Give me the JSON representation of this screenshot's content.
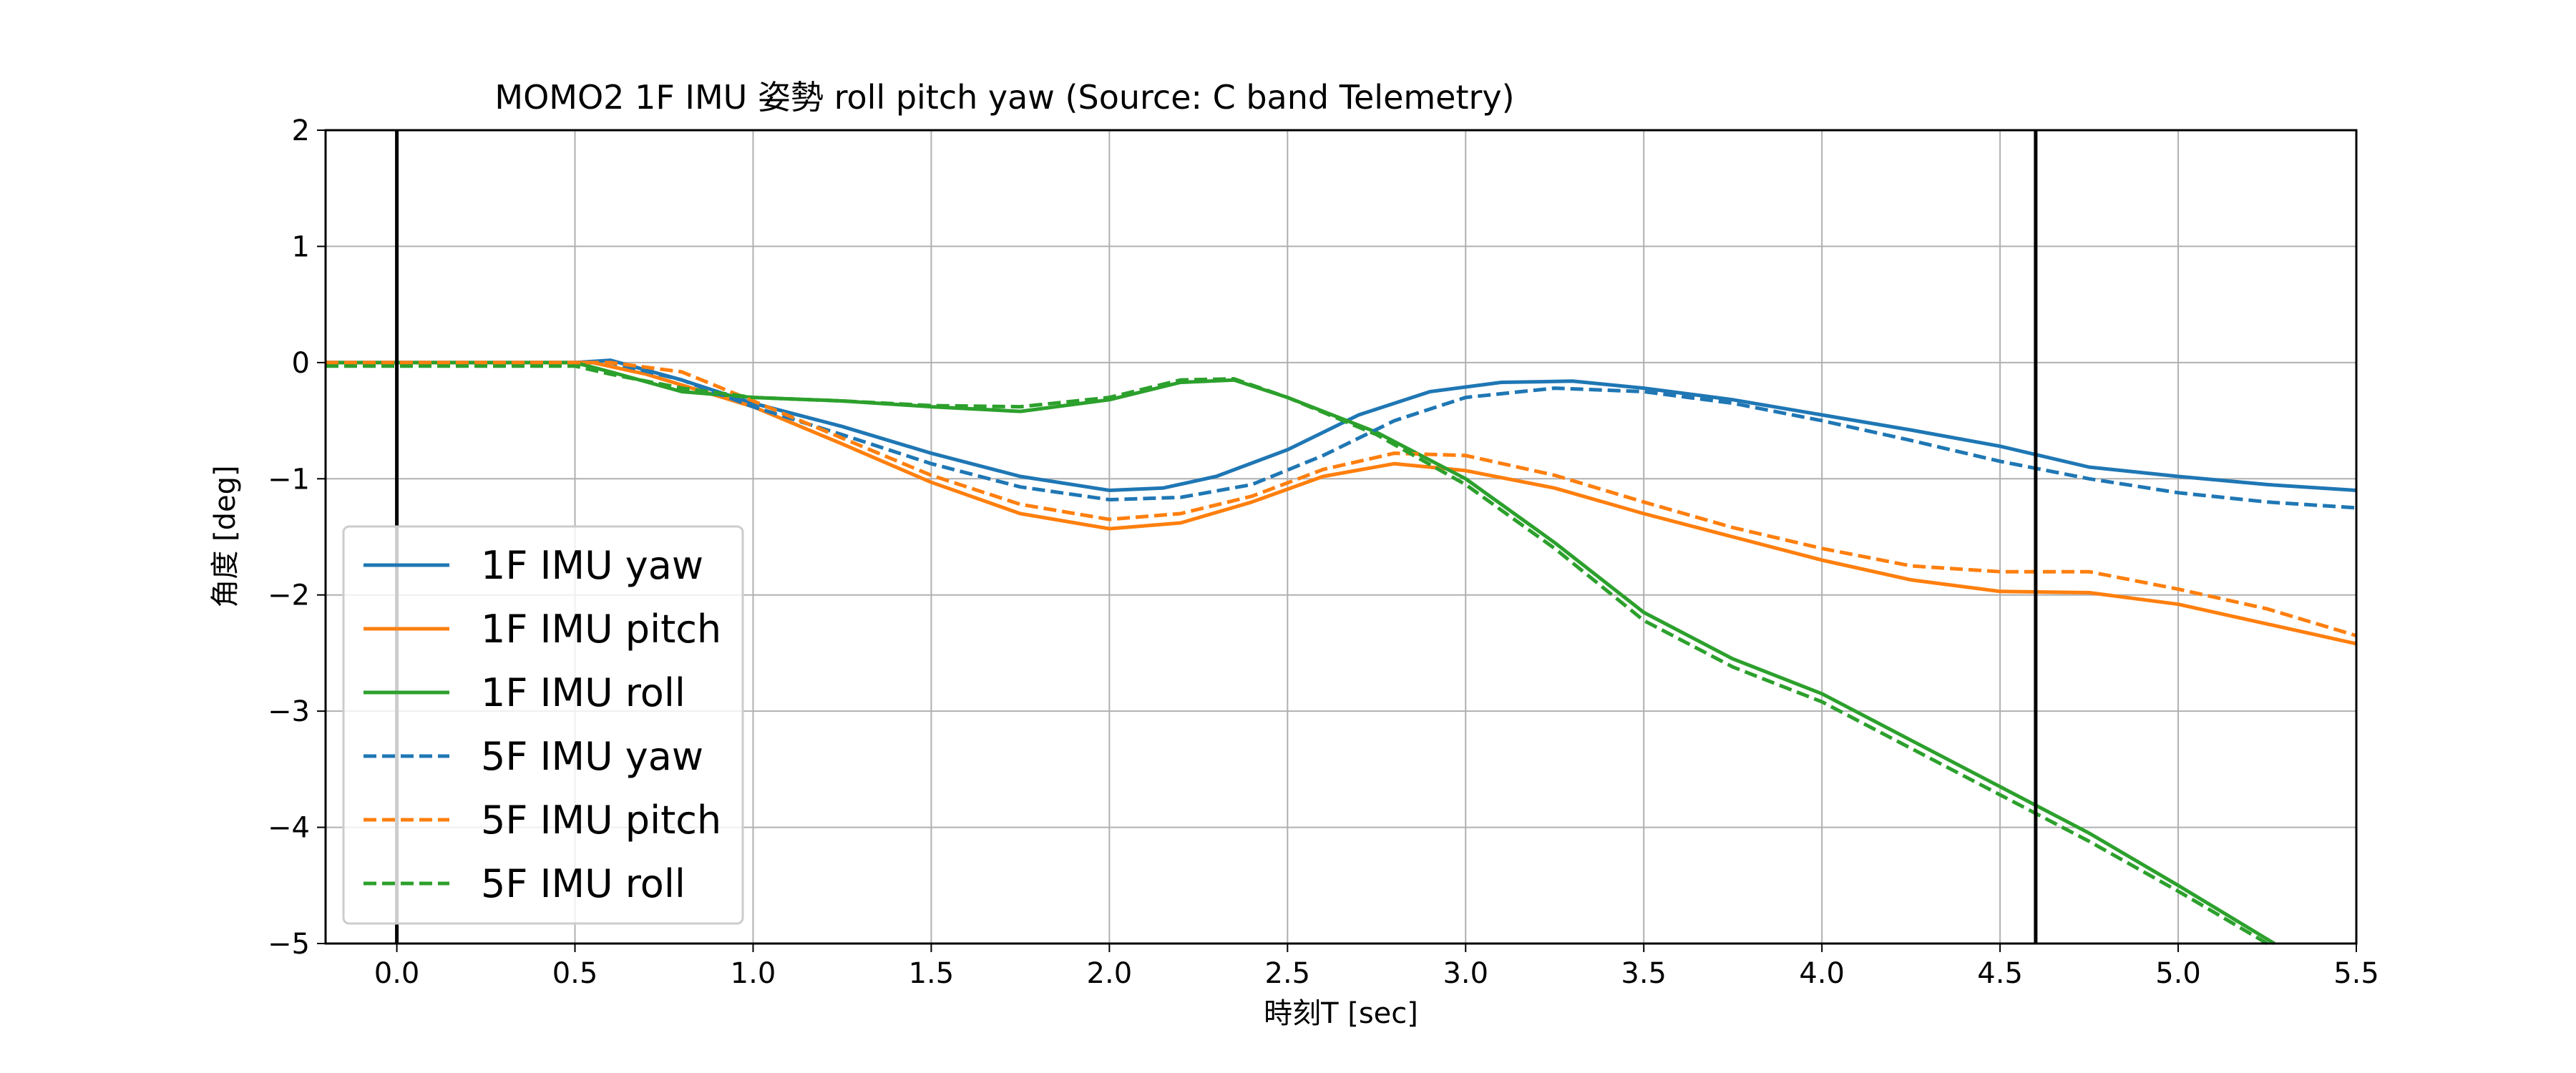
{
  "chart_data": {
    "type": "line",
    "title": "MOMO2 1F IMU 姿勢 roll pitch yaw (Source: C band Telemetry)",
    "xlabel": "時刻T [sec]",
    "ylabel": "角度 [deg]",
    "xlim": [
      -0.2,
      5.5
    ],
    "ylim": [
      -5,
      2
    ],
    "xticks": [
      0.0,
      0.5,
      1.0,
      1.5,
      2.0,
      2.5,
      3.0,
      3.5,
      4.0,
      4.5,
      5.0,
      5.5
    ],
    "xtick_labels": [
      "0.0",
      "0.5",
      "1.0",
      "1.5",
      "2.0",
      "2.5",
      "3.0",
      "3.5",
      "4.0",
      "4.5",
      "5.0",
      "5.5"
    ],
    "yticks": [
      2,
      1,
      0,
      -1,
      -2,
      -3,
      -4,
      -5
    ],
    "ytick_labels": [
      "2",
      "1",
      "0",
      "−1",
      "−2",
      "−3",
      "−4",
      "−5"
    ],
    "grid": true,
    "legend_position": "lower-left",
    "vertical_markers": [
      0.0,
      4.6
    ],
    "series": [
      {
        "name": "1F IMU yaw",
        "color": "#1f77b4",
        "style": "solid",
        "x": [
          -0.2,
          0.5,
          0.6,
          0.8,
          1.0,
          1.25,
          1.5,
          1.75,
          2.0,
          2.15,
          2.3,
          2.5,
          2.7,
          2.9,
          3.1,
          3.3,
          3.5,
          3.75,
          4.0,
          4.25,
          4.5,
          4.75,
          5.0,
          5.25,
          5.5
        ],
        "y": [
          0.0,
          0.0,
          0.02,
          -0.15,
          -0.35,
          -0.55,
          -0.78,
          -0.98,
          -1.1,
          -1.08,
          -0.98,
          -0.75,
          -0.45,
          -0.25,
          -0.17,
          -0.16,
          -0.22,
          -0.32,
          -0.45,
          -0.58,
          -0.72,
          -0.9,
          -0.98,
          -1.05,
          -1.1
        ]
      },
      {
        "name": "1F IMU pitch",
        "color": "#ff7f0e",
        "style": "solid",
        "x": [
          -0.2,
          0.5,
          0.55,
          0.7,
          1.0,
          1.25,
          1.5,
          1.75,
          2.0,
          2.2,
          2.4,
          2.6,
          2.8,
          3.0,
          3.25,
          3.5,
          3.75,
          4.0,
          4.25,
          4.5,
          4.75,
          5.0,
          5.25,
          5.5
        ],
        "y": [
          0.0,
          0.0,
          0.0,
          -0.1,
          -0.38,
          -0.7,
          -1.03,
          -1.3,
          -1.43,
          -1.38,
          -1.2,
          -0.98,
          -0.87,
          -0.93,
          -1.08,
          -1.3,
          -1.5,
          -1.7,
          -1.87,
          -1.97,
          -1.98,
          -2.08,
          -2.25,
          -2.42
        ]
      },
      {
        "name": "1F IMU roll",
        "color": "#2ca02c",
        "style": "solid",
        "x": [
          -0.2,
          0.5,
          0.6,
          0.8,
          1.0,
          1.25,
          1.5,
          1.75,
          2.0,
          2.2,
          2.35,
          2.5,
          2.75,
          3.0,
          3.25,
          3.5,
          3.75,
          4.0,
          4.25,
          4.5,
          4.75,
          5.0,
          5.27
        ],
        "y": [
          0.0,
          0.0,
          -0.08,
          -0.25,
          -0.3,
          -0.33,
          -0.38,
          -0.42,
          -0.32,
          -0.17,
          -0.15,
          -0.3,
          -0.6,
          -1.0,
          -1.55,
          -2.15,
          -2.55,
          -2.85,
          -3.25,
          -3.65,
          -4.05,
          -4.5,
          -5.0
        ]
      },
      {
        "name": "5F IMU yaw",
        "color": "#1f77b4",
        "style": "dashed",
        "x": [
          -0.2,
          0.5,
          0.6,
          0.8,
          1.0,
          1.25,
          1.5,
          1.75,
          2.0,
          2.2,
          2.4,
          2.6,
          2.8,
          3.0,
          3.25,
          3.5,
          3.75,
          4.0,
          4.25,
          4.5,
          4.75,
          5.0,
          5.25,
          5.5
        ],
        "y": [
          0.0,
          0.0,
          0.0,
          -0.15,
          -0.38,
          -0.62,
          -0.87,
          -1.07,
          -1.18,
          -1.16,
          -1.05,
          -0.8,
          -0.5,
          -0.3,
          -0.22,
          -0.25,
          -0.35,
          -0.5,
          -0.67,
          -0.85,
          -1.0,
          -1.12,
          -1.2,
          -1.25
        ]
      },
      {
        "name": "5F IMU pitch",
        "color": "#ff7f0e",
        "style": "dashed",
        "x": [
          -0.2,
          0.5,
          0.6,
          0.8,
          1.0,
          1.25,
          1.5,
          1.75,
          2.0,
          2.2,
          2.4,
          2.6,
          2.8,
          3.0,
          3.25,
          3.5,
          3.75,
          4.0,
          4.25,
          4.5,
          4.75,
          5.0,
          5.25,
          5.5
        ],
        "y": [
          0.0,
          0.0,
          0.0,
          -0.08,
          -0.33,
          -0.65,
          -0.97,
          -1.22,
          -1.35,
          -1.3,
          -1.15,
          -0.92,
          -0.78,
          -0.8,
          -0.97,
          -1.2,
          -1.42,
          -1.6,
          -1.75,
          -1.8,
          -1.8,
          -1.95,
          -2.12,
          -2.35
        ]
      },
      {
        "name": "5F IMU roll",
        "color": "#2ca02c",
        "style": "dashed",
        "x": [
          -0.2,
          0.5,
          0.6,
          0.8,
          1.0,
          1.25,
          1.5,
          1.75,
          2.0,
          2.2,
          2.35,
          2.5,
          2.75,
          3.0,
          3.25,
          3.5,
          3.75,
          4.0,
          4.25,
          4.5,
          4.75,
          5.0,
          5.25
        ],
        "y": [
          -0.03,
          -0.03,
          -0.1,
          -0.22,
          -0.3,
          -0.33,
          -0.37,
          -0.38,
          -0.3,
          -0.15,
          -0.14,
          -0.3,
          -0.62,
          -1.05,
          -1.6,
          -2.22,
          -2.62,
          -2.92,
          -3.32,
          -3.72,
          -4.12,
          -4.55,
          -5.0
        ]
      }
    ]
  }
}
